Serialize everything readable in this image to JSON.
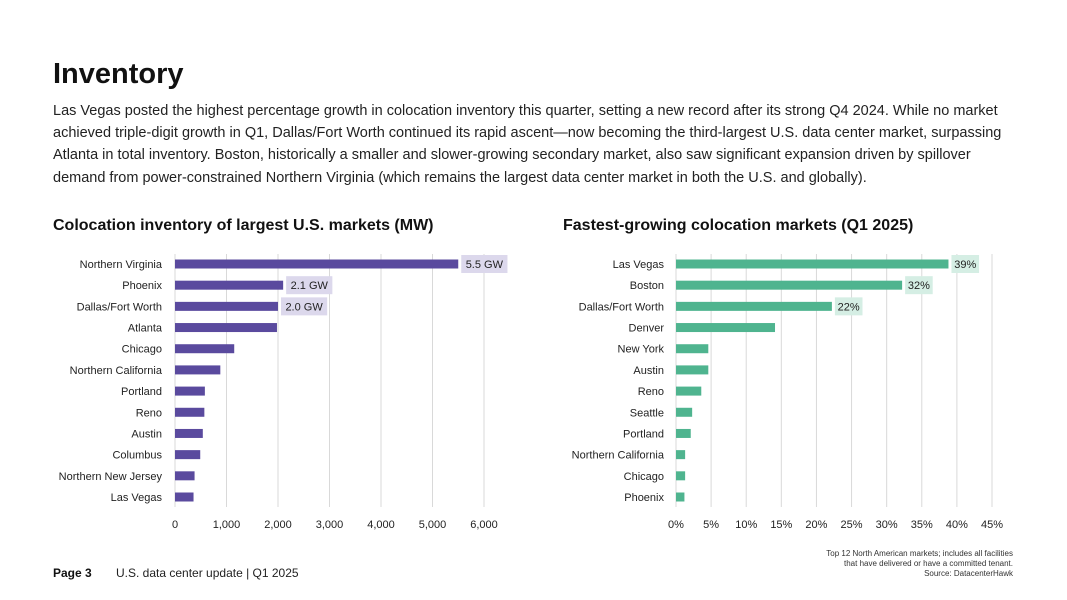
{
  "page": {
    "title": "Inventory",
    "intro": "Las Vegas posted the highest percentage growth in colocation inventory this quarter, setting a new record after its strong Q4 2024. While no market achieved triple-digit growth in Q1, Dallas/Fort Worth continued its rapid ascent—now becoming the third-largest U.S. data center market, surpassing Atlanta in total inventory. Boston, historically a smaller and slower-growing secondary market, also saw significant expansion driven by spillover demand from power-constrained Northern Virginia (which remains the largest data center market in both the U.S. and globally)."
  },
  "footer": {
    "page_label": "Page 3",
    "report_title": "U.S. data center update | Q1 2025",
    "note_line1": "Top 12 North American markets; includes all  facilities",
    "note_line2": "that have delivered or have a committed tenant.",
    "source": "Source: DatacenterHawk"
  },
  "colors": {
    "inventory_bar": "#5a4a9e",
    "inventory_label_bg": "#dcd8ec",
    "growth_bar": "#4fb48f",
    "growth_label_bg": "#d5eee4",
    "grid": "#d9d9d9"
  },
  "chart_data": [
    {
      "id": "inventory",
      "type": "bar",
      "orientation": "horizontal",
      "title": "Colocation inventory of largest U.S. markets (MW)",
      "categories": [
        "Northern Virginia",
        "Phoenix",
        "Dallas/Fort Worth",
        "Atlanta",
        "Chicago",
        "Northern California",
        "Portland",
        "Reno",
        "Austin",
        "Columbus",
        "Northern New Jersey",
        "Las Vegas"
      ],
      "values": [
        5500,
        2100,
        2000,
        1980,
        1150,
        880,
        580,
        570,
        540,
        490,
        380,
        360
      ],
      "data_labels": [
        "5.5 GW",
        "2.1 GW",
        "2.0 GW",
        null,
        null,
        null,
        null,
        null,
        null,
        null,
        null,
        null
      ],
      "xlim": [
        0,
        6000
      ],
      "xticks": [
        0,
        1000,
        2000,
        3000,
        4000,
        5000,
        6000
      ],
      "xtick_labels": [
        "0",
        "1,000",
        "2,000",
        "3,000",
        "4,000",
        "5,000",
        "6,000"
      ],
      "grid": true
    },
    {
      "id": "growth",
      "type": "bar",
      "orientation": "horizontal",
      "title": "Fastest-growing colocation markets (Q1 2025)",
      "categories": [
        "Las Vegas",
        "Boston",
        "Dallas/Fort Worth",
        "Denver",
        "New York",
        "Austin",
        "Reno",
        "Seattle",
        "Portland",
        "Northern California",
        "Chicago",
        "Phoenix"
      ],
      "values": [
        38.8,
        32.2,
        22.2,
        14.1,
        4.6,
        4.6,
        3.6,
        2.3,
        2.1,
        1.3,
        1.3,
        1.2
      ],
      "data_labels": [
        "39%",
        "32%",
        "22%",
        null,
        null,
        null,
        null,
        null,
        null,
        null,
        null,
        null
      ],
      "xlim": [
        0,
        45
      ],
      "xticks": [
        0,
        5,
        10,
        15,
        20,
        25,
        30,
        35,
        40,
        45
      ],
      "xtick_labels": [
        "0%",
        "5%",
        "10%",
        "15%",
        "20%",
        "25%",
        "30%",
        "35%",
        "40%",
        "45%"
      ],
      "grid": true
    }
  ]
}
